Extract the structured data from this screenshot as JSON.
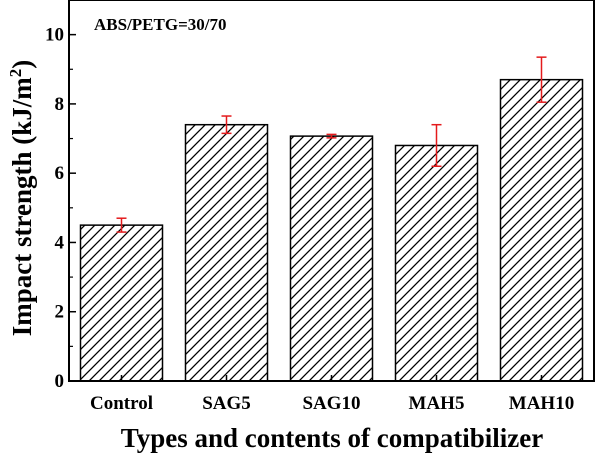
{
  "chart_data": {
    "type": "bar",
    "annotation": "ABS/PETG=30/70",
    "xlabel": "Types and contents of compatibilizer",
    "ylabel_main": "Impact strength (kJ/m",
    "ylabel_sup": "2",
    "ylabel_close": ")",
    "categories": [
      "Control",
      "SAG5",
      "SAG10",
      "MAH5",
      "MAH10"
    ],
    "values": [
      4.5,
      7.4,
      7.07,
      6.8,
      8.7
    ],
    "errors": [
      0.2,
      0.25,
      0.05,
      0.6,
      0.65
    ],
    "ylim": [
      0,
      11
    ],
    "yticks": [
      0,
      2,
      4,
      6,
      8,
      10
    ],
    "error_bar_color": "#e41a1c",
    "bar_fill": "hatched",
    "grid": false
  }
}
